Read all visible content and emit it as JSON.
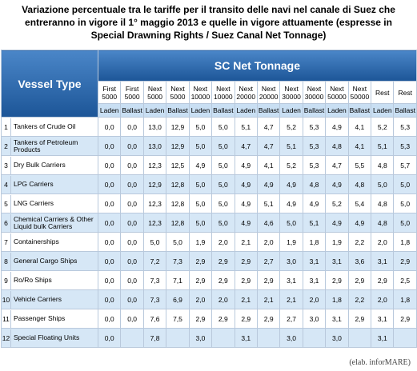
{
  "title": "Variazione percentuale tra le tariffe per il transito delle navi nel canale di Suez che entreranno in vigore il 1° maggio 2013 e quelle in vigore attuamente (espresse in Special Drawning Rights / Suez Canal Net Tonnage)",
  "table": {
    "vessel_header": "Vessel Type",
    "group_header": "SC Net Tonnage",
    "columns": [
      {
        "band": "First 5000",
        "state": "Laden"
      },
      {
        "band": "First 5000",
        "state": "Ballast"
      },
      {
        "band": "Next 5000",
        "state": "Laden"
      },
      {
        "band": "Next 5000",
        "state": "Ballast"
      },
      {
        "band": "Next 10000",
        "state": "Laden"
      },
      {
        "band": "Next 10000",
        "state": "Ballast"
      },
      {
        "band": "Next 20000",
        "state": "Laden"
      },
      {
        "band": "Next 20000",
        "state": "Ballast"
      },
      {
        "band": "Next 30000",
        "state": "Laden"
      },
      {
        "band": "Next 30000",
        "state": "Ballast"
      },
      {
        "band": "Next 50000",
        "state": "Laden"
      },
      {
        "band": "Next 50000",
        "state": "Ballast"
      },
      {
        "band": "Rest",
        "state": "Laden"
      },
      {
        "band": "Rest",
        "state": "Ballast"
      }
    ],
    "rows": [
      {
        "num": "1",
        "vessel": "Tankers of Crude Oil",
        "cells": [
          "0,0",
          "0,0",
          "13,0",
          "12,9",
          "5,0",
          "5,0",
          "5,1",
          "4,7",
          "5,2",
          "5,3",
          "4,9",
          "4,1",
          "5,2",
          "5,3"
        ]
      },
      {
        "num": "2",
        "vessel": "Tankers of Petroleum Products",
        "cells": [
          "0,0",
          "0,0",
          "13,0",
          "12,9",
          "5,0",
          "5,0",
          "4,7",
          "4,7",
          "5,1",
          "5,3",
          "4,8",
          "4,1",
          "5,1",
          "5,3"
        ]
      },
      {
        "num": "3",
        "vessel": "Dry Bulk Carriers",
        "cells": [
          "0,0",
          "0,0",
          "12,3",
          "12,5",
          "4,9",
          "5,0",
          "4,9",
          "4,1",
          "5,2",
          "5,3",
          "4,7",
          "5,5",
          "4,8",
          "5,7"
        ]
      },
      {
        "num": "4",
        "vessel": "LPG Carriers",
        "cells": [
          "0,0",
          "0,0",
          "12,9",
          "12,8",
          "5,0",
          "5,0",
          "4,9",
          "4,9",
          "4,9",
          "4,8",
          "4,9",
          "4,8",
          "5,0",
          "5,0"
        ]
      },
      {
        "num": "5",
        "vessel": "LNG Carriers",
        "cells": [
          "0,0",
          "0,0",
          "12,3",
          "12,8",
          "5,0",
          "5,0",
          "4,9",
          "5,1",
          "4,9",
          "4,9",
          "5,2",
          "5,4",
          "4,8",
          "5,0"
        ]
      },
      {
        "num": "6",
        "vessel": "Chemical Carriers & Other Liquid bulk Carriers",
        "cells": [
          "0,0",
          "0,0",
          "12,3",
          "12,8",
          "5,0",
          "5,0",
          "4,9",
          "4,6",
          "5,0",
          "5,1",
          "4,9",
          "4,9",
          "4,8",
          "5,0"
        ]
      },
      {
        "num": "7",
        "vessel": "Containerships",
        "cells": [
          "0,0",
          "0,0",
          "5,0",
          "5,0",
          "1,9",
          "2,0",
          "2,1",
          "2,0",
          "1,9",
          "1,8",
          "1,9",
          "2,2",
          "2,0",
          "1,8"
        ]
      },
      {
        "num": "8",
        "vessel": "General Cargo Ships",
        "cells": [
          "0,0",
          "0,0",
          "7,2",
          "7,3",
          "2,9",
          "2,9",
          "2,9",
          "2,7",
          "3,0",
          "3,1",
          "3,1",
          "3,6",
          "3,1",
          "2,9"
        ]
      },
      {
        "num": "9",
        "vessel": "Ro/Ro Ships",
        "cells": [
          "0,0",
          "0,0",
          "7,3",
          "7,1",
          "2,9",
          "2,9",
          "2,9",
          "2,9",
          "3,1",
          "3,1",
          "2,9",
          "2,9",
          "2,9",
          "2,5"
        ]
      },
      {
        "num": "10",
        "vessel": "Vehicle Carriers",
        "cells": [
          "0,0",
          "0,0",
          "7,3",
          "6,9",
          "2,0",
          "2,0",
          "2,1",
          "2,1",
          "2,1",
          "2,0",
          "1,8",
          "2,2",
          "2,0",
          "1,8"
        ]
      },
      {
        "num": "11",
        "vessel": "Passenger Ships",
        "cells": [
          "0,0",
          "0,0",
          "7,6",
          "7,5",
          "2,9",
          "2,9",
          "2,9",
          "2,9",
          "2,7",
          "3,0",
          "3,1",
          "2,9",
          "3,1",
          "2,9"
        ]
      },
      {
        "num": "12",
        "vessel": "Special Floating Units",
        "cells": [
          "0,0",
          null,
          "7,8",
          null,
          "3,0",
          null,
          "3,1",
          null,
          "3,0",
          null,
          "3,0",
          null,
          "3,1",
          null
        ]
      }
    ]
  },
  "footer": "(elab. inforMARE)"
}
